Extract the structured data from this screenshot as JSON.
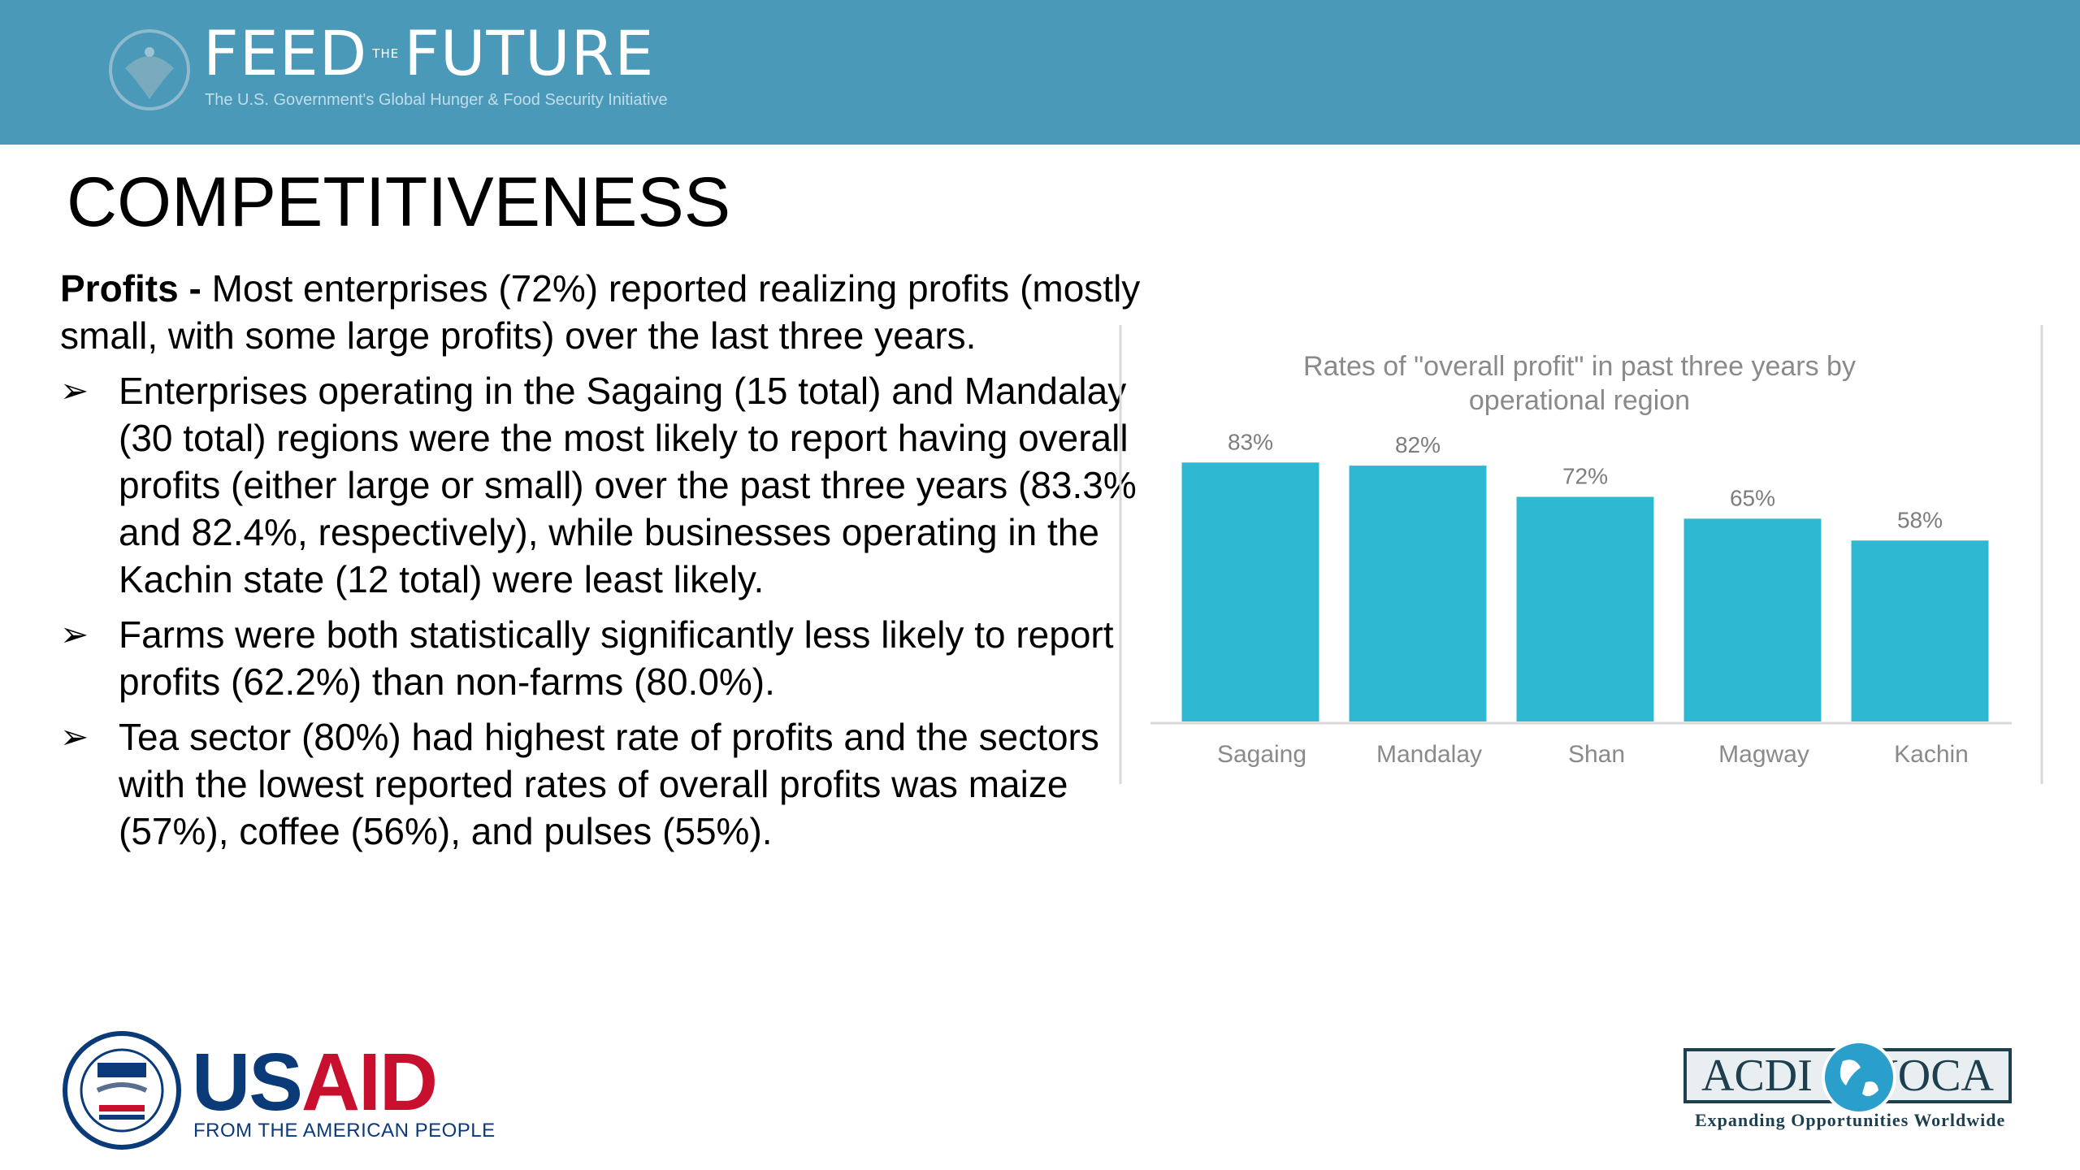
{
  "header": {
    "brand_word1": "FEED",
    "brand_the": "THE",
    "brand_word2": "FUTURE",
    "tagline": "The U.S. Government's Global Hunger & Food Security Initiative",
    "banner_color": "#4a99b9"
  },
  "title": "COMPETITIVENESS",
  "lead": {
    "label": "Profits - ",
    "text": "Most enterprises (72%) reported realizing profits (mostly small, with some large profits) over the last three years."
  },
  "bullets": [
    "Enterprises operating in the Sagaing (15 total) and Mandalay (30 total) regions were the most likely to report having overall profits (either large or small) over the past three years (83.3% and 82.4%, respectively), while businesses operating in the Kachin state (12 total) were least likely.",
    "Farms were both statistically significantly less likely to report profits (62.2%) than non-farms (80.0%).",
    "Tea sector (80%) had highest rate of profits and the sectors with the lowest reported rates of overall profits was maize (57%), coffee (56%), and pulses (55%)."
  ],
  "bullet_icon": "arrow-bullet-icon",
  "chart_data": {
    "type": "bar",
    "title": "Rates of \"overall profit\" in past three years by operational region",
    "categories": [
      "Sagaing",
      "Mandalay",
      "Shan",
      "Magway",
      "Kachin"
    ],
    "values": [
      83,
      82,
      72,
      65,
      58
    ],
    "value_labels": [
      "83%",
      "82%",
      "72%",
      "65%",
      "58%"
    ],
    "xlabel": "",
    "ylabel": "",
    "ylim": [
      0,
      100
    ],
    "grid": false,
    "bar_color": "#2fb8d2"
  },
  "footer": {
    "usaid_word1": "US",
    "usaid_word2": "AID",
    "usaid_tagline": "FROM THE AMERICAN PEOPLE",
    "acdi_word1": "ACDI",
    "acdi_word2": "VOCA",
    "acdi_tagline": "Expanding Opportunities Worldwide"
  }
}
